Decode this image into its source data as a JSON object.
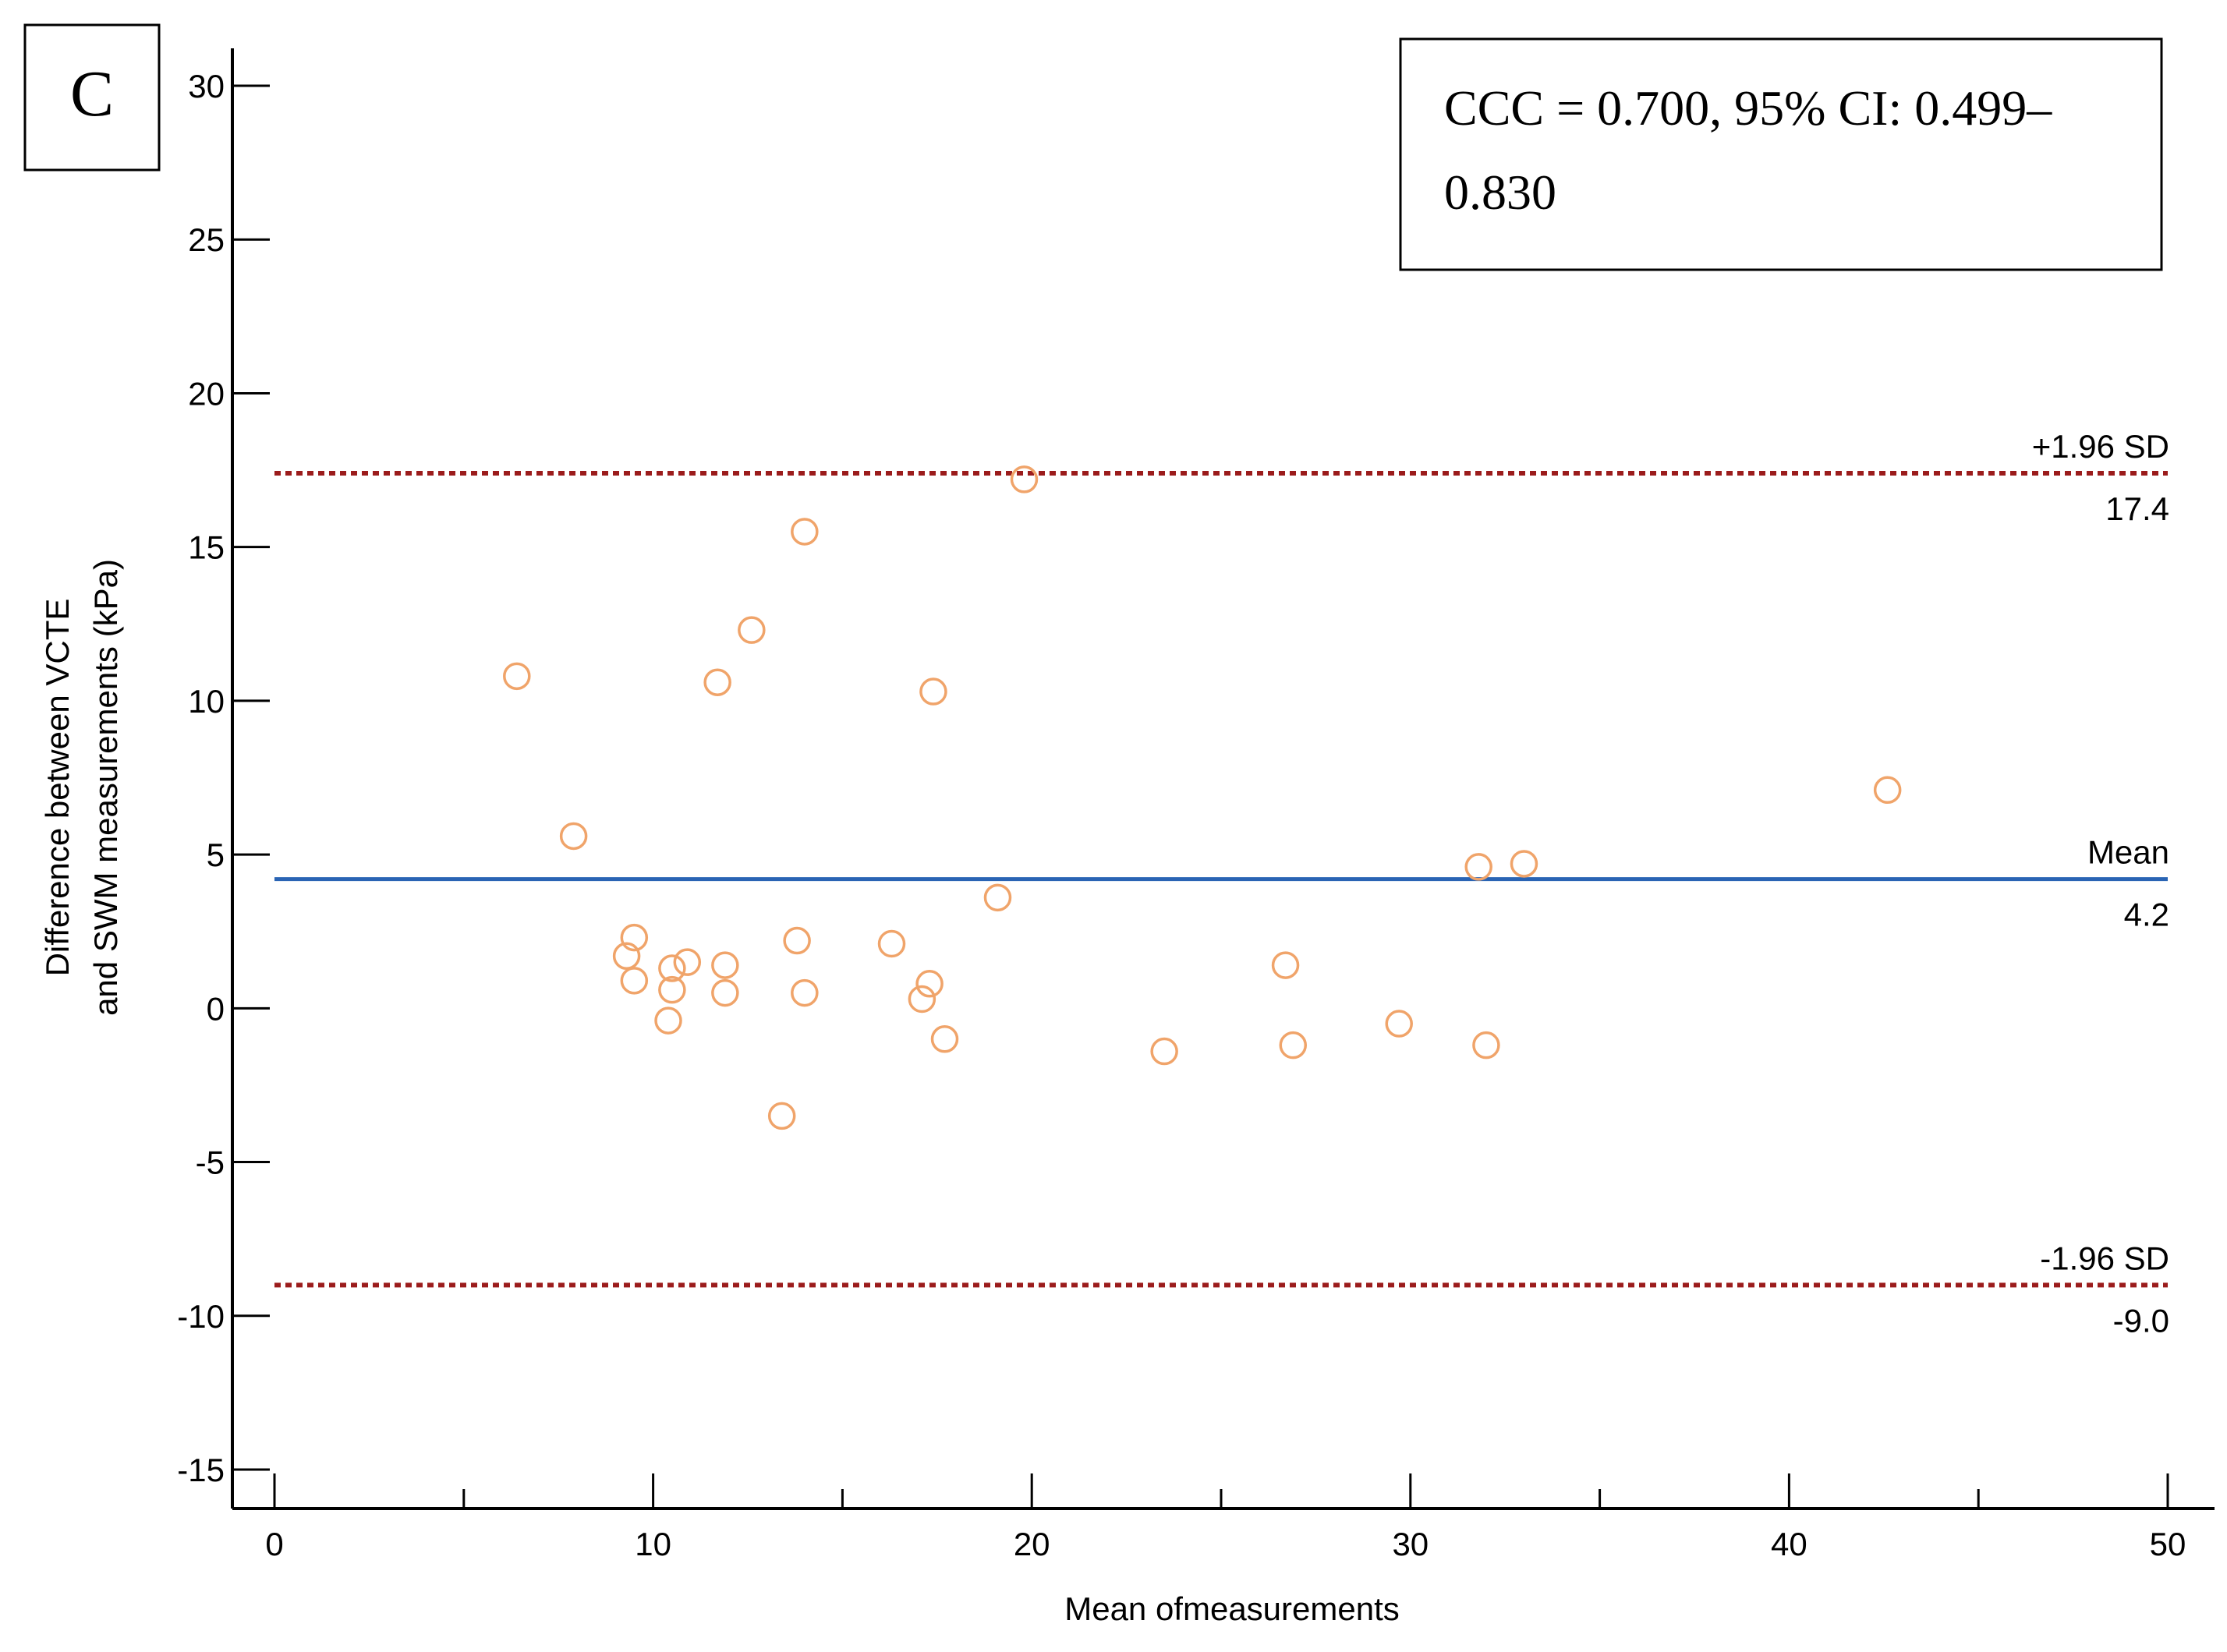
{
  "panel_label": "C",
  "annotation": {
    "line1": "CCC = 0.700, 95% CI: 0.499–",
    "line2": "0.830"
  },
  "reference_lines": {
    "upper": {
      "label": "+1.96 SD",
      "value_label": "17.4",
      "value": 17.4,
      "color": "#9b1c1c"
    },
    "mean": {
      "label": "Mean",
      "value_label": "4.2",
      "value": 4.2,
      "color": "#2a64b4"
    },
    "lower": {
      "label": "-1.96 SD",
      "value_label": "-9.0",
      "value": -9.0,
      "color": "#9b1c1c"
    }
  },
  "chart_data": {
    "type": "scatter",
    "title": "",
    "xlabel": "Mean ofmeasurements",
    "ylabel_line1": "Difference between VCTE",
    "ylabel_line2": "and SWM measurements (kPa)",
    "xlim": [
      0,
      50
    ],
    "ylim": [
      -15,
      30
    ],
    "x_ticks": [
      0,
      10,
      20,
      30,
      40,
      50
    ],
    "x_tick_labels": [
      "0",
      "10",
      "20",
      "30",
      "40",
      "50"
    ],
    "y_ticks": [
      -15,
      -10,
      -5,
      0,
      5,
      10,
      15,
      20,
      25,
      30
    ],
    "y_tick_labels": [
      "-15",
      "-10",
      "-5",
      "0",
      "5",
      "10",
      "15",
      "20",
      "25",
      "30"
    ],
    "marker_color": "#f0a46a",
    "points": [
      {
        "x": 19.8,
        "y": 17.2
      },
      {
        "x": 14.0,
        "y": 15.5
      },
      {
        "x": 12.6,
        "y": 12.3
      },
      {
        "x": 6.4,
        "y": 10.8
      },
      {
        "x": 11.7,
        "y": 10.6
      },
      {
        "x": 17.4,
        "y": 10.3
      },
      {
        "x": 42.6,
        "y": 7.1
      },
      {
        "x": 7.9,
        "y": 5.6
      },
      {
        "x": 33.0,
        "y": 4.7
      },
      {
        "x": 31.8,
        "y": 4.6
      },
      {
        "x": 19.1,
        "y": 3.6
      },
      {
        "x": 9.5,
        "y": 2.3
      },
      {
        "x": 13.8,
        "y": 2.2
      },
      {
        "x": 16.3,
        "y": 2.1
      },
      {
        "x": 9.3,
        "y": 1.7
      },
      {
        "x": 10.9,
        "y": 1.5
      },
      {
        "x": 10.5,
        "y": 1.3
      },
      {
        "x": 11.9,
        "y": 1.4
      },
      {
        "x": 26.7,
        "y": 1.4
      },
      {
        "x": 9.5,
        "y": 0.9
      },
      {
        "x": 17.3,
        "y": 0.8
      },
      {
        "x": 10.5,
        "y": 0.6
      },
      {
        "x": 11.9,
        "y": 0.5
      },
      {
        "x": 14.0,
        "y": 0.5
      },
      {
        "x": 17.1,
        "y": 0.3
      },
      {
        "x": 10.4,
        "y": -0.4
      },
      {
        "x": 29.7,
        "y": -0.5
      },
      {
        "x": 17.7,
        "y": -1.0
      },
      {
        "x": 26.9,
        "y": -1.2
      },
      {
        "x": 32.0,
        "y": -1.2
      },
      {
        "x": 23.5,
        "y": -1.4
      },
      {
        "x": 13.4,
        "y": -3.5
      }
    ]
  }
}
